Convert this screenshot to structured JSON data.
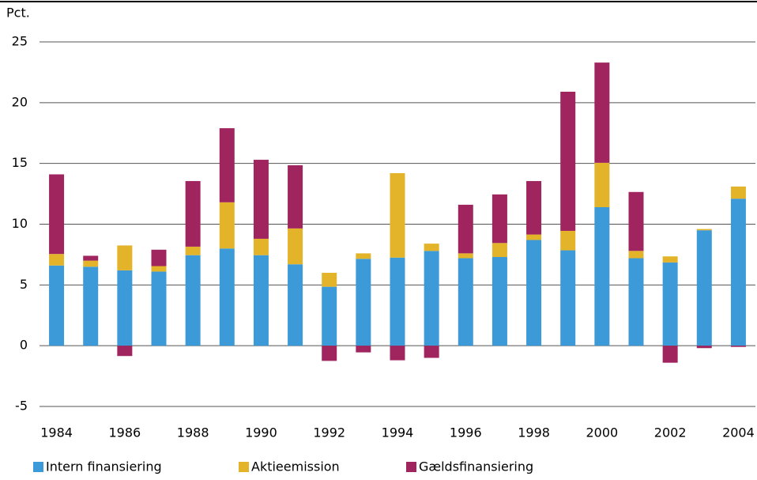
{
  "chart_data": {
    "type": "stacked_bar",
    "y_label": "Pct.",
    "categories": [
      "1984",
      null,
      "1986",
      null,
      "1988",
      null,
      "1990",
      null,
      "1992",
      null,
      "1994",
      null,
      "1996",
      null,
      "1998",
      null,
      "2000",
      null,
      "2002",
      null,
      "2004"
    ],
    "series": [
      {
        "name": "Intern finansiering",
        "color": "#3d9ad8",
        "values": [
          6.6,
          6.5,
          6.2,
          6.1,
          7.45,
          8.0,
          7.45,
          6.7,
          4.85,
          7.15,
          7.25,
          7.8,
          7.2,
          7.3,
          8.7,
          7.85,
          11.4,
          7.2,
          6.85,
          9.5,
          12.1
        ]
      },
      {
        "name": "Aktieemission",
        "color": "#e3b32a",
        "values": [
          0.95,
          0.5,
          2.05,
          0.45,
          0.7,
          3.8,
          1.35,
          2.95,
          1.15,
          0.45,
          6.95,
          0.6,
          0.4,
          1.15,
          0.45,
          1.6,
          3.65,
          0.6,
          0.5,
          0.1,
          1.0
        ]
      },
      {
        "name": "Gældsfinansiering",
        "color": "#a0255e",
        "values": [
          6.55,
          0.4,
          -0.85,
          1.35,
          5.4,
          6.1,
          6.5,
          5.2,
          -1.25,
          -0.55,
          -1.2,
          -1.0,
          4.0,
          4.0,
          4.4,
          11.45,
          8.25,
          4.85,
          -1.4,
          -0.2,
          -0.1
        ]
      }
    ],
    "ylim": [
      -5,
      25
    ],
    "yticks": [
      -5,
      0,
      5,
      10,
      15,
      20,
      25
    ],
    "grid": true
  }
}
